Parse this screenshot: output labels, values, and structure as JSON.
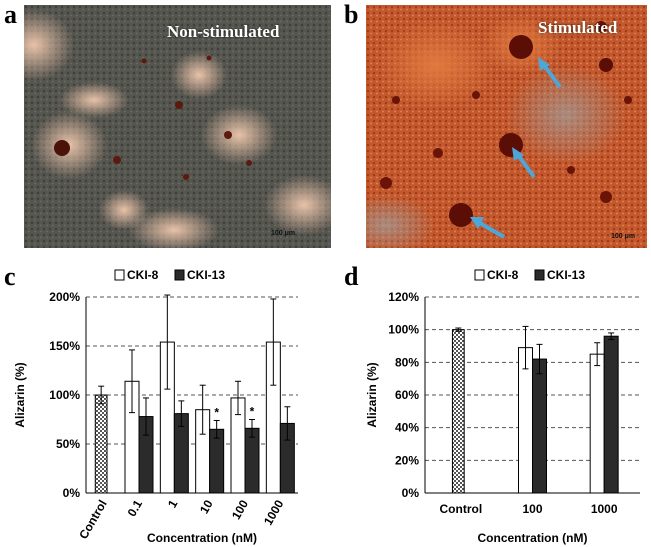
{
  "panels": {
    "a": {
      "letter": "a",
      "caption": "Non-stimulated",
      "scale_bar": "100 μm"
    },
    "b": {
      "letter": "b",
      "caption": "Stimulated",
      "scale_bar": "100 μm"
    },
    "c": {
      "letter": "c"
    },
    "d": {
      "letter": "d"
    }
  },
  "colors": {
    "control_fill": "#888888",
    "cki8_fill": "#ffffff",
    "cki13_fill": "#2b2b2b",
    "arrow": "#4da6d8",
    "nonstim_bg": "#5a5a52",
    "stim_bg": "#c0552a"
  },
  "chart_data": [
    {
      "type": "bar",
      "panel": "c",
      "legend": [
        "CKI-8",
        "CKI-13"
      ],
      "categories": [
        "Control",
        "0.1",
        "1",
        "10",
        "100",
        "1000"
      ],
      "control": {
        "value": 100,
        "error": 9
      },
      "series": [
        {
          "name": "CKI-8",
          "values": [
            null,
            114,
            154,
            85,
            97,
            154
          ],
          "errors": [
            null,
            32,
            48,
            25,
            17,
            44
          ]
        },
        {
          "name": "CKI-13",
          "values": [
            null,
            78,
            81,
            65,
            66,
            71
          ],
          "errors": [
            null,
            19,
            13,
            9,
            9,
            17
          ]
        }
      ],
      "significance": [
        {
          "category": "10",
          "text": "*"
        },
        {
          "category": "100",
          "text": "*"
        }
      ],
      "ylabel": "Alizarin (%)",
      "xlabel": "Concentration (nM)",
      "yticks": [
        "0%",
        "50%",
        "100%",
        "150%",
        "200%"
      ],
      "ylim": [
        0,
        200
      ],
      "grid": "horizontal dashed",
      "legend_position": "top"
    },
    {
      "type": "bar",
      "panel": "d",
      "legend": [
        "CKI-8",
        "CKI-13"
      ],
      "categories": [
        "Control",
        "100",
        "1000"
      ],
      "control": {
        "value": 100,
        "error": 1
      },
      "series": [
        {
          "name": "CKI-8",
          "values": [
            null,
            89,
            85
          ],
          "errors": [
            null,
            13,
            7
          ]
        },
        {
          "name": "CKI-13",
          "values": [
            null,
            82,
            96
          ],
          "errors": [
            null,
            9,
            2
          ]
        }
      ],
      "ylabel": "Alizarin (%)",
      "xlabel": "Concentration (nM)",
      "yticks": [
        "0%",
        "20%",
        "40%",
        "60%",
        "80%",
        "100%",
        "120%"
      ],
      "ylim": [
        0,
        120
      ],
      "grid": "horizontal dashed",
      "legend_position": "top"
    }
  ]
}
